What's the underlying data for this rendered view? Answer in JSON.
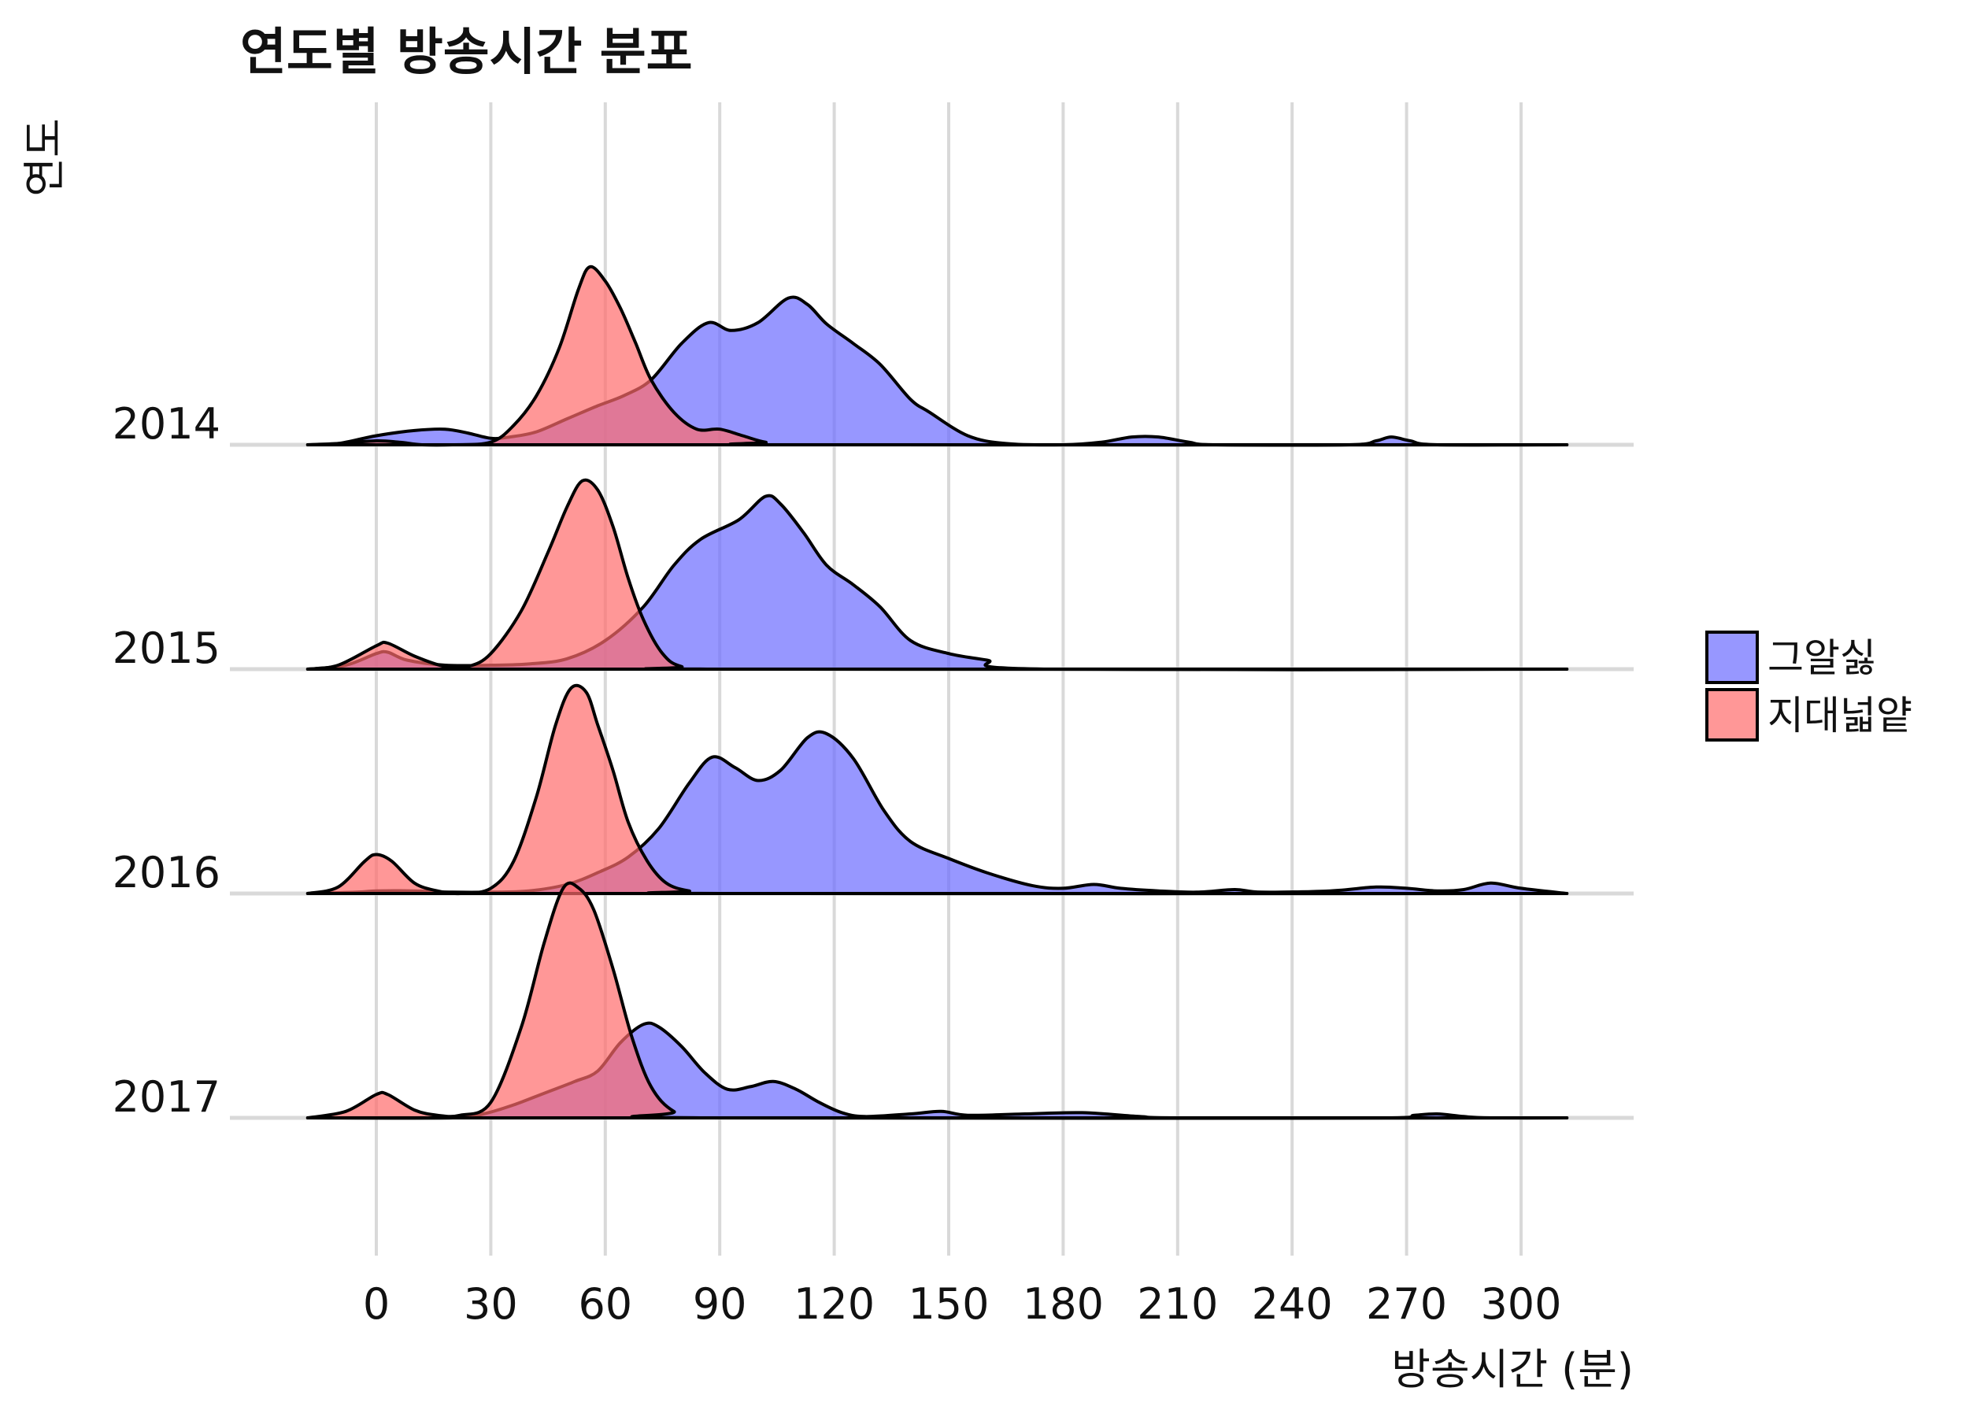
{
  "chart_data": {
    "type": "ridgeline",
    "title": "연도별 방송시간 분포",
    "xlabel": "방송시간 (분)",
    "ylabel": "연도",
    "xticks": [
      0,
      30,
      60,
      90,
      120,
      150,
      180,
      210,
      240,
      270,
      300
    ],
    "xlim": [
      -18,
      312
    ],
    "grid": true,
    "legend_position": "right",
    "categories": [
      "2014",
      "2015",
      "2016",
      "2017"
    ],
    "series": [
      {
        "name": "그알싫",
        "color": "#6b6bff",
        "opacity": 0.7,
        "ridges": {
          "2014": [
            [
              -18,
              0
            ],
            [
              -10,
              0.01
            ],
            [
              0,
              0.07
            ],
            [
              10,
              0.11
            ],
            [
              18,
              0.12
            ],
            [
              24,
              0.09
            ],
            [
              30,
              0.05
            ],
            [
              35,
              0.06
            ],
            [
              42,
              0.1
            ],
            [
              50,
              0.2
            ],
            [
              58,
              0.3
            ],
            [
              65,
              0.38
            ],
            [
              72,
              0.5
            ],
            [
              80,
              0.78
            ],
            [
              87,
              0.94
            ],
            [
              93,
              0.88
            ],
            [
              100,
              0.94
            ],
            [
              108,
              1.13
            ],
            [
              113,
              1.08
            ],
            [
              118,
              0.93
            ],
            [
              125,
              0.78
            ],
            [
              132,
              0.62
            ],
            [
              140,
              0.35
            ],
            [
              145,
              0.25
            ],
            [
              155,
              0.07
            ],
            [
              165,
              0.01
            ],
            [
              180,
              0
            ],
            [
              190,
              0.02
            ],
            [
              198,
              0.06
            ],
            [
              205,
              0.06
            ],
            [
              213,
              0.02
            ],
            [
              220,
              0
            ],
            [
              255,
              0
            ],
            [
              262,
              0.03
            ],
            [
              266,
              0.06
            ],
            [
              271,
              0.03
            ],
            [
              278,
              0
            ],
            [
              312,
              0
            ]
          ],
          "2015": [
            [
              -18,
              0
            ],
            [
              -8,
              0.03
            ],
            [
              0,
              0.12
            ],
            [
              3,
              0.13
            ],
            [
              8,
              0.07
            ],
            [
              18,
              0.03
            ],
            [
              30,
              0.03
            ],
            [
              40,
              0.04
            ],
            [
              50,
              0.08
            ],
            [
              60,
              0.22
            ],
            [
              70,
              0.48
            ],
            [
              78,
              0.8
            ],
            [
              85,
              1.0
            ],
            [
              95,
              1.15
            ],
            [
              102,
              1.33
            ],
            [
              106,
              1.27
            ],
            [
              112,
              1.05
            ],
            [
              118,
              0.8
            ],
            [
              125,
              0.65
            ],
            [
              132,
              0.48
            ],
            [
              140,
              0.22
            ],
            [
              150,
              0.12
            ],
            [
              160,
              0.07
            ],
            [
              175,
              0
            ],
            [
              312,
              0
            ]
          ],
          "2016": [
            [
              -18,
              0
            ],
            [
              -5,
              0.01
            ],
            [
              0,
              0.02
            ],
            [
              10,
              0.02
            ],
            [
              20,
              0.01
            ],
            [
              30,
              0.01
            ],
            [
              40,
              0.02
            ],
            [
              50,
              0.07
            ],
            [
              58,
              0.16
            ],
            [
              66,
              0.28
            ],
            [
              74,
              0.5
            ],
            [
              82,
              0.85
            ],
            [
              88,
              1.05
            ],
            [
              94,
              0.97
            ],
            [
              100,
              0.87
            ],
            [
              106,
              0.95
            ],
            [
              113,
              1.2
            ],
            [
              118,
              1.23
            ],
            [
              125,
              1.04
            ],
            [
              133,
              0.64
            ],
            [
              140,
              0.4
            ],
            [
              150,
              0.27
            ],
            [
              160,
              0.16
            ],
            [
              172,
              0.06
            ],
            [
              180,
              0.04
            ],
            [
              188,
              0.07
            ],
            [
              195,
              0.04
            ],
            [
              205,
              0.02
            ],
            [
              215,
              0.01
            ],
            [
              225,
              0.03
            ],
            [
              232,
              0.01
            ],
            [
              250,
              0.02
            ],
            [
              262,
              0.05
            ],
            [
              270,
              0.04
            ],
            [
              278,
              0.02
            ],
            [
              285,
              0.03
            ],
            [
              292,
              0.08
            ],
            [
              300,
              0.04
            ],
            [
              312,
              0
            ]
          ],
          "2017": [
            [
              -18,
              0
            ],
            [
              20,
              0
            ],
            [
              28,
              0.03
            ],
            [
              36,
              0.1
            ],
            [
              44,
              0.19
            ],
            [
              52,
              0.28
            ],
            [
              58,
              0.36
            ],
            [
              64,
              0.58
            ],
            [
              70,
              0.72
            ],
            [
              74,
              0.7
            ],
            [
              80,
              0.55
            ],
            [
              86,
              0.35
            ],
            [
              92,
              0.22
            ],
            [
              98,
              0.24
            ],
            [
              104,
              0.28
            ],
            [
              110,
              0.22
            ],
            [
              116,
              0.12
            ],
            [
              122,
              0.04
            ],
            [
              128,
              0.01
            ],
            [
              140,
              0.03
            ],
            [
              148,
              0.05
            ],
            [
              155,
              0.02
            ],
            [
              170,
              0.03
            ],
            [
              185,
              0.04
            ],
            [
              200,
              0.01
            ],
            [
              210,
              0
            ],
            [
              265,
              0
            ],
            [
              272,
              0.02
            ],
            [
              278,
              0.03
            ],
            [
              285,
              0.01
            ],
            [
              292,
              0
            ],
            [
              312,
              0
            ]
          ]
        }
      },
      {
        "name": "지대넓얕",
        "color": "#ff6b6b",
        "opacity": 0.7,
        "ridges": {
          "2014": [
            [
              -18,
              0
            ],
            [
              -10,
              0.01
            ],
            [
              0,
              0.03
            ],
            [
              6,
              0.02
            ],
            [
              12,
              0
            ],
            [
              20,
              0
            ],
            [
              30,
              0.02
            ],
            [
              36,
              0.15
            ],
            [
              42,
              0.38
            ],
            [
              48,
              0.75
            ],
            [
              53,
              1.2
            ],
            [
              56,
              1.37
            ],
            [
              60,
              1.26
            ],
            [
              64,
              1.05
            ],
            [
              68,
              0.78
            ],
            [
              72,
              0.5
            ],
            [
              78,
              0.25
            ],
            [
              84,
              0.12
            ],
            [
              90,
              0.12
            ],
            [
              96,
              0.07
            ],
            [
              102,
              0.02
            ],
            [
              110,
              0
            ],
            [
              312,
              0
            ]
          ],
          "2015": [
            [
              -18,
              0
            ],
            [
              -10,
              0.03
            ],
            [
              0,
              0.18
            ],
            [
              3,
              0.2
            ],
            [
              10,
              0.1
            ],
            [
              18,
              0.02
            ],
            [
              24,
              0.02
            ],
            [
              30,
              0.12
            ],
            [
              38,
              0.45
            ],
            [
              45,
              0.9
            ],
            [
              50,
              1.25
            ],
            [
              54,
              1.45
            ],
            [
              58,
              1.38
            ],
            [
              62,
              1.1
            ],
            [
              66,
              0.7
            ],
            [
              70,
              0.38
            ],
            [
              75,
              0.12
            ],
            [
              80,
              0.02
            ],
            [
              90,
              0
            ],
            [
              312,
              0
            ]
          ],
          "2016": [
            [
              -18,
              0
            ],
            [
              -10,
              0.05
            ],
            [
              -3,
              0.25
            ],
            [
              0,
              0.3
            ],
            [
              4,
              0.25
            ],
            [
              10,
              0.08
            ],
            [
              16,
              0.02
            ],
            [
              22,
              0
            ],
            [
              30,
              0.04
            ],
            [
              36,
              0.25
            ],
            [
              42,
              0.75
            ],
            [
              47,
              1.3
            ],
            [
              51,
              1.58
            ],
            [
              55,
              1.55
            ],
            [
              58,
              1.3
            ],
            [
              62,
              0.95
            ],
            [
              66,
              0.55
            ],
            [
              71,
              0.25
            ],
            [
              76,
              0.08
            ],
            [
              82,
              0.02
            ],
            [
              90,
              0
            ],
            [
              312,
              0
            ]
          ],
          "2017": [
            [
              -18,
              0
            ],
            [
              -8,
              0.05
            ],
            [
              0,
              0.18
            ],
            [
              3,
              0.18
            ],
            [
              10,
              0.06
            ],
            [
              16,
              0.02
            ],
            [
              22,
              0.02
            ],
            [
              30,
              0.12
            ],
            [
              38,
              0.7
            ],
            [
              44,
              1.35
            ],
            [
              49,
              1.77
            ],
            [
              53,
              1.77
            ],
            [
              57,
              1.6
            ],
            [
              62,
              1.15
            ],
            [
              67,
              0.62
            ],
            [
              72,
              0.24
            ],
            [
              78,
              0.05
            ],
            [
              86,
              0
            ],
            [
              312,
              0
            ]
          ]
        }
      }
    ]
  }
}
